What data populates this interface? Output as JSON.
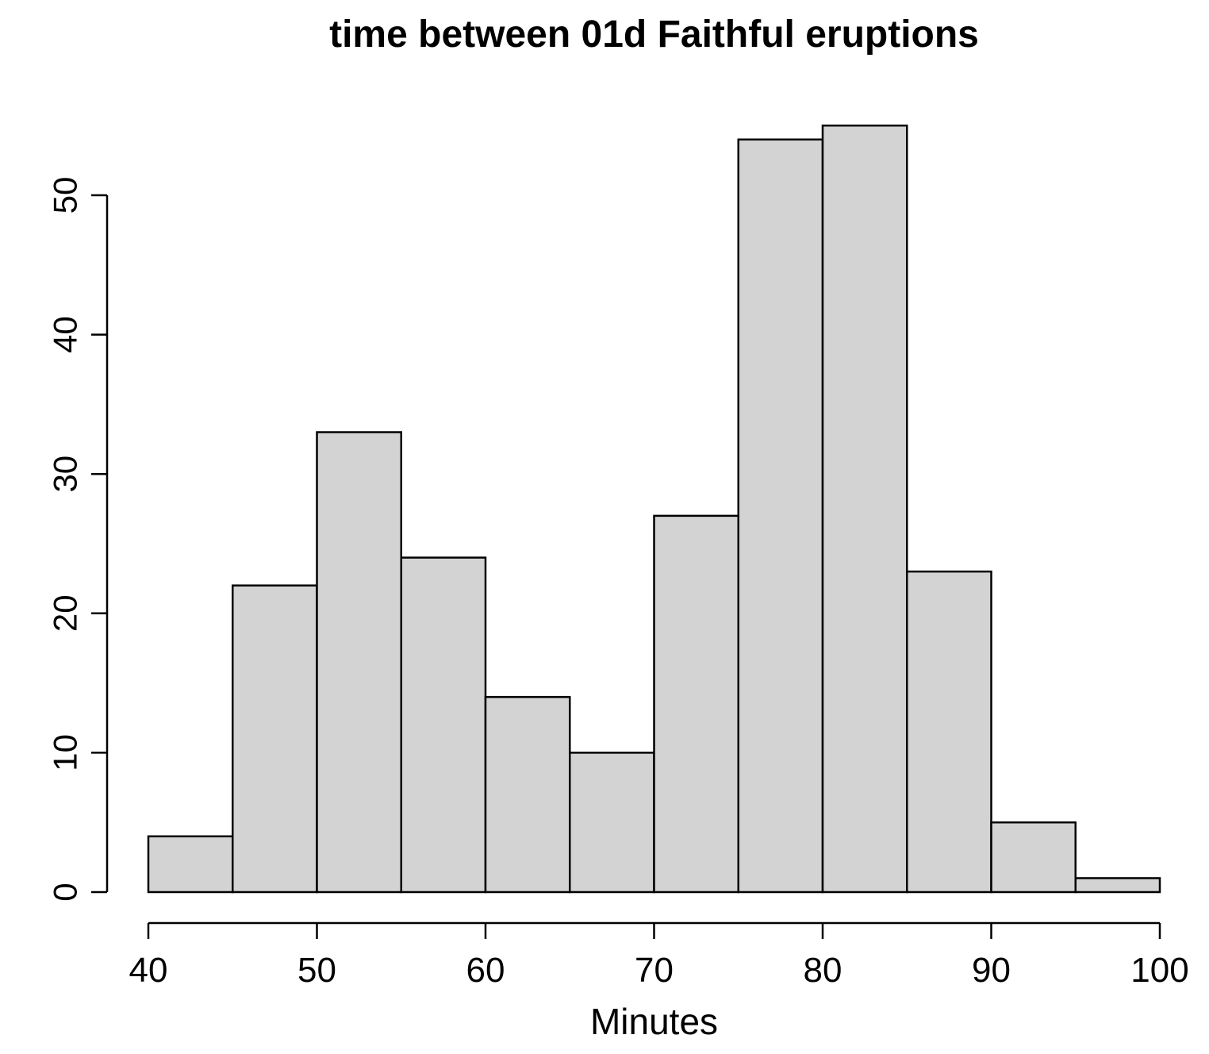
{
  "page": {
    "background": "#ffffff"
  },
  "chart_data": {
    "type": "bar",
    "variant": "histogram",
    "title": "time between 01d Faithful eruptions",
    "xlabel": "Minutes",
    "ylabel": "",
    "bin_edges": [
      40,
      45,
      50,
      55,
      60,
      65,
      70,
      75,
      80,
      85,
      90,
      95,
      100
    ],
    "counts": [
      4,
      22,
      33,
      24,
      14,
      10,
      27,
      54,
      55,
      23,
      5,
      1
    ],
    "x_ticks": [
      40,
      50,
      60,
      70,
      80,
      90,
      100
    ],
    "y_ticks": [
      0,
      10,
      20,
      30,
      40,
      50
    ],
    "xlim": [
      40,
      100
    ],
    "ylim": [
      0,
      55
    ],
    "grid": false,
    "legend": "none",
    "colors": {
      "bar_fill": "#d3d3d3",
      "bar_stroke": "#000000",
      "axis": "#000000",
      "text": "#000000",
      "background": "#ffffff"
    }
  }
}
